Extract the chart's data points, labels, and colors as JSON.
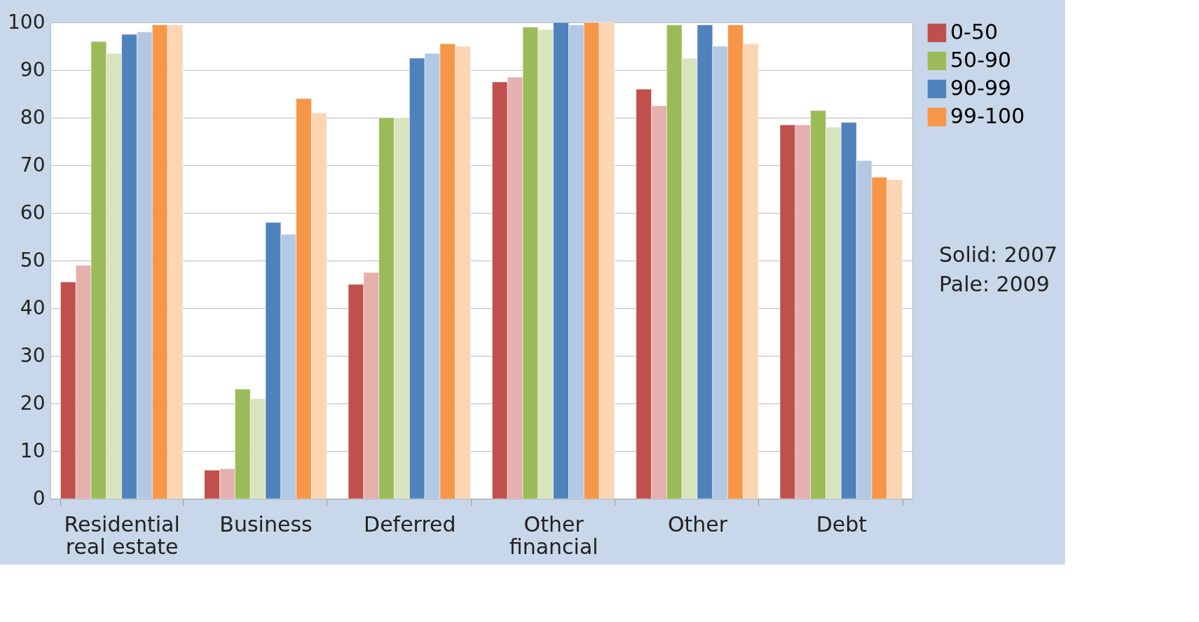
{
  "chart_data": {
    "type": "bar",
    "categories": [
      "Residential real estate",
      "Business",
      "Deferred",
      "Other financial",
      "Other",
      "Debt"
    ],
    "series": [
      {
        "name": "0-50",
        "color": "#c0504d",
        "values": [
          45.5,
          6,
          45,
          87.5,
          86,
          78.5
        ]
      },
      {
        "color": "#e6b0ae",
        "values": [
          49,
          6.3,
          47.5,
          88.5,
          82.5,
          78.5
        ]
      },
      {
        "name": "50-90",
        "color": "#9bbb59",
        "values": [
          96,
          23,
          80,
          99,
          99.5,
          81.5
        ]
      },
      {
        "color": "#d7e4bd",
        "values": [
          93.5,
          21,
          80,
          98.5,
          92.5,
          78
        ]
      },
      {
        "name": "90-99",
        "color": "#4f81bd",
        "values": [
          97.5,
          58,
          92.5,
          100,
          99.5,
          79
        ]
      },
      {
        "color": "#b3c8e4",
        "values": [
          98,
          55.5,
          93.5,
          99.5,
          95,
          71
        ]
      },
      {
        "name": "99-100",
        "color": "#f79646",
        "values": [
          99.5,
          84,
          95.5,
          100,
          99.5,
          67.5
        ]
      },
      {
        "color": "#fcd5b5",
        "values": [
          99.5,
          81,
          95,
          100,
          95.5,
          67
        ]
      }
    ],
    "ylim": [
      0,
      100
    ],
    "yticks": [
      0,
      10,
      20,
      30,
      40,
      50,
      60,
      70,
      80,
      90,
      100
    ],
    "grid": "y",
    "legend": "top right",
    "annotations": [
      "Solid: 2007",
      "Pale: 2009"
    ]
  }
}
